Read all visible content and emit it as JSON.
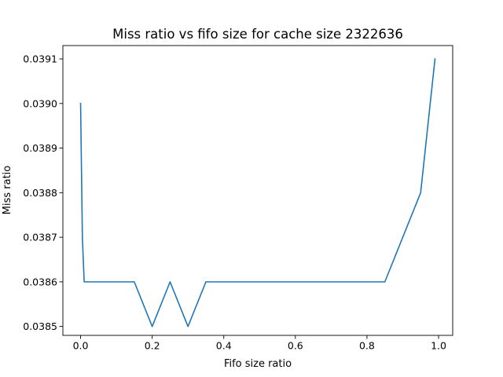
{
  "chart_data": {
    "type": "line",
    "title": "Miss ratio vs fifo size for cache size 2322636",
    "xlabel": "Fifo size ratio",
    "ylabel": "Miss ratio",
    "xlim": [
      -0.0495,
      1.0395
    ],
    "ylim": [
      0.03848,
      0.03913
    ],
    "x_ticks": [
      {
        "value": 0.0,
        "label": "0.0"
      },
      {
        "value": 0.2,
        "label": "0.2"
      },
      {
        "value": 0.4,
        "label": "0.4"
      },
      {
        "value": 0.6,
        "label": "0.6"
      },
      {
        "value": 0.8,
        "label": "0.8"
      },
      {
        "value": 1.0,
        "label": "1.0"
      }
    ],
    "y_ticks": [
      {
        "value": 0.0385,
        "label": "0.0385"
      },
      {
        "value": 0.0386,
        "label": "0.0386"
      },
      {
        "value": 0.0387,
        "label": "0.0387"
      },
      {
        "value": 0.0388,
        "label": "0.0388"
      },
      {
        "value": 0.0389,
        "label": "0.0389"
      },
      {
        "value": 0.039,
        "label": "0.0390"
      },
      {
        "value": 0.0391,
        "label": "0.0391"
      }
    ],
    "grid": false,
    "legend": "none",
    "series": [
      {
        "color": "#1f77b4",
        "x": [
          0.0,
          0.005,
          0.01,
          0.05,
          0.1,
          0.15,
          0.2,
          0.25,
          0.3,
          0.35,
          0.4,
          0.45,
          0.5,
          0.55,
          0.6,
          0.65,
          0.7,
          0.75,
          0.8,
          0.85,
          0.9,
          0.95,
          0.99
        ],
        "y": [
          0.039,
          0.0387,
          0.0386,
          0.0386,
          0.0386,
          0.0386,
          0.0385,
          0.0386,
          0.0385,
          0.0386,
          0.0386,
          0.0386,
          0.0386,
          0.0386,
          0.0386,
          0.0386,
          0.0386,
          0.0386,
          0.0386,
          0.0386,
          0.0387,
          0.0388,
          0.0391
        ]
      }
    ]
  }
}
